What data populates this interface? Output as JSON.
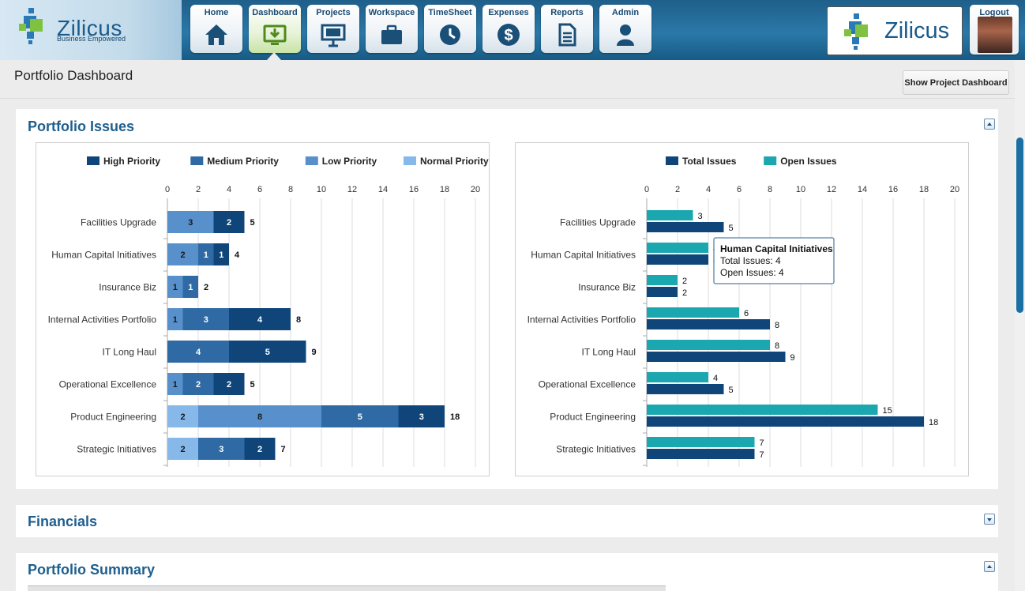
{
  "app": {
    "brand": "Zilicus",
    "tagline": "Business Empowered"
  },
  "nav": {
    "items": [
      {
        "label": "Home",
        "icon": "home-icon"
      },
      {
        "label": "Dashboard",
        "icon": "dashboard-icon"
      },
      {
        "label": "Projects",
        "icon": "projects-icon"
      },
      {
        "label": "Workspace",
        "icon": "briefcase-icon"
      },
      {
        "label": "TimeSheet",
        "icon": "clock-icon"
      },
      {
        "label": "Expenses",
        "icon": "dollar-icon"
      },
      {
        "label": "Reports",
        "icon": "document-icon"
      },
      {
        "label": "Admin",
        "icon": "user-icon"
      }
    ],
    "active": "Dashboard",
    "logout_label": "Logout"
  },
  "page": {
    "title": "Portfolio Dashboard",
    "project_dashboard_button": "Show Project Dashboard"
  },
  "panels": {
    "issues": "Portfolio Issues",
    "financials": "Financials",
    "summary": "Portfolio Summary"
  },
  "colors": {
    "high": "#10457a",
    "medium": "#2f6aa5",
    "low": "#5890cc",
    "normal": "#86b8ea",
    "total": "#10457a",
    "open": "#1aa7b0",
    "accent": "#1f5f8e"
  },
  "chart_data": [
    {
      "type": "bar",
      "orientation": "horizontal",
      "stacked": true,
      "categories": [
        "Facilities Upgrade",
        "Human Capital Initiatives",
        "Insurance Biz",
        "Internal Activities Portfolio",
        "IT Long Haul",
        "Operational Excellence",
        "Product Engineering",
        "Strategic Initiatives"
      ],
      "series": [
        {
          "name": "Normal Priority",
          "values": [
            0,
            0,
            0,
            0,
            0,
            0,
            2,
            2
          ]
        },
        {
          "name": "Low Priority",
          "values": [
            3,
            2,
            1,
            1,
            0,
            1,
            8,
            0
          ]
        },
        {
          "name": "Medium Priority",
          "values": [
            0,
            1,
            1,
            3,
            4,
            2,
            5,
            3
          ]
        },
        {
          "name": "High Priority",
          "values": [
            2,
            1,
            0,
            4,
            5,
            2,
            3,
            2
          ]
        }
      ],
      "segment_labels": [
        [
          "0",
          "3",
          "0",
          "2"
        ],
        [
          "0",
          "2",
          "1",
          "1"
        ],
        [
          "0",
          "1",
          "1",
          "0"
        ],
        [
          "0",
          "1",
          "3",
          "4"
        ],
        [
          "0",
          "",
          "4",
          "5"
        ],
        [
          "0",
          "1",
          "2",
          "2"
        ],
        [
          "2",
          "8",
          "5",
          "3"
        ],
        [
          "2",
          "0",
          "3",
          "2"
        ]
      ],
      "totals": [
        5,
        4,
        2,
        8,
        9,
        5,
        18,
        7
      ],
      "legend": [
        "High Priority",
        "Medium Priority",
        "Low Priority",
        "Normal Priority"
      ],
      "ticks": [
        0,
        2,
        4,
        6,
        8,
        10,
        12,
        14,
        16,
        18,
        20
      ],
      "xlim": [
        0,
        20
      ],
      "legend_position": "top"
    },
    {
      "type": "bar",
      "orientation": "horizontal",
      "stacked": false,
      "categories": [
        "Facilities Upgrade",
        "Human Capital Initiatives",
        "Insurance Biz",
        "Internal Activities Portfolio",
        "IT Long Haul",
        "Operational Excellence",
        "Product Engineering",
        "Strategic Initiatives"
      ],
      "series": [
        {
          "name": "Open Issues",
          "values": [
            3,
            4,
            2,
            6,
            8,
            4,
            15,
            7
          ]
        },
        {
          "name": "Total Issues",
          "values": [
            5,
            4,
            2,
            8,
            9,
            5,
            18,
            7
          ]
        }
      ],
      "legend": [
        "Total Issues",
        "Open Issues"
      ],
      "ticks": [
        0,
        2,
        4,
        6,
        8,
        10,
        12,
        14,
        16,
        18,
        20
      ],
      "xlim": [
        0,
        20
      ],
      "legend_position": "top",
      "tooltip": {
        "title": "Human Capital Initiatives",
        "line1": "Total Issues: 4",
        "line2": "Open Issues: 4"
      }
    }
  ]
}
